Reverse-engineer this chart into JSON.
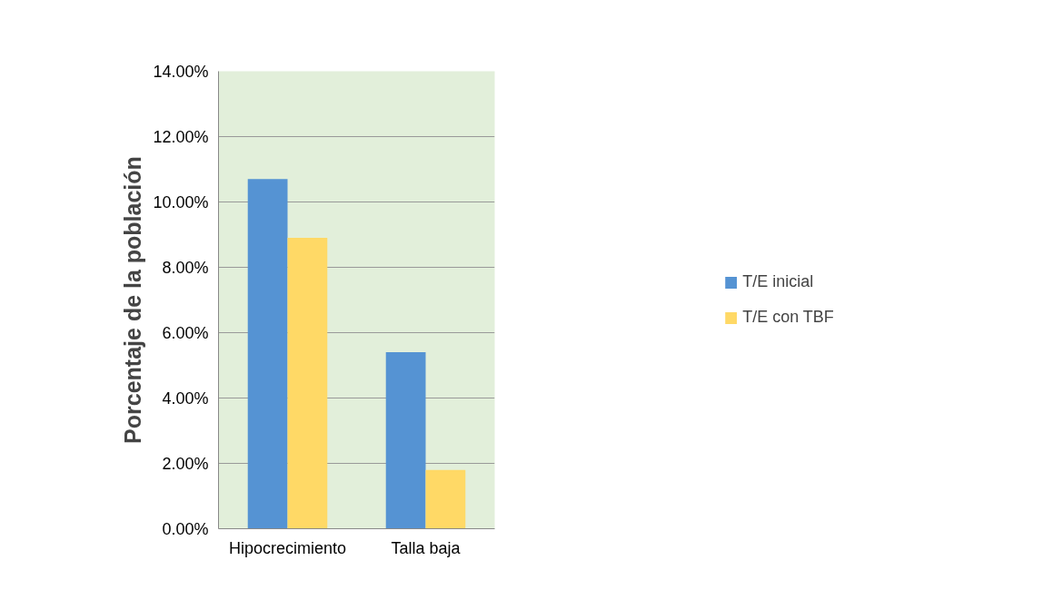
{
  "chart_data": {
    "type": "bar",
    "ylabel": "Porcentaje de la población",
    "categories": [
      "Hipocrecimiento",
      "Talla baja"
    ],
    "series": [
      {
        "name": "T/E inicial",
        "color": "#5593d3",
        "values": [
          10.7,
          5.4
        ]
      },
      {
        "name": "T/E con TBF",
        "color": "#ffd966",
        "values": [
          8.9,
          1.8
        ]
      }
    ],
    "ylim": [
      0,
      14
    ],
    "yticks": [
      {
        "value": 0,
        "label": "0.00%"
      },
      {
        "value": 2,
        "label": "2.00%"
      },
      {
        "value": 4,
        "label": "4.00%"
      },
      {
        "value": 6,
        "label": "6.00%"
      },
      {
        "value": 8,
        "label": "8.00%"
      },
      {
        "value": 10,
        "label": "10.00%"
      },
      {
        "value": 12,
        "label": "12.00%"
      },
      {
        "value": 14,
        "label": "14.00%"
      }
    ],
    "grid": "y",
    "legend": "right"
  }
}
